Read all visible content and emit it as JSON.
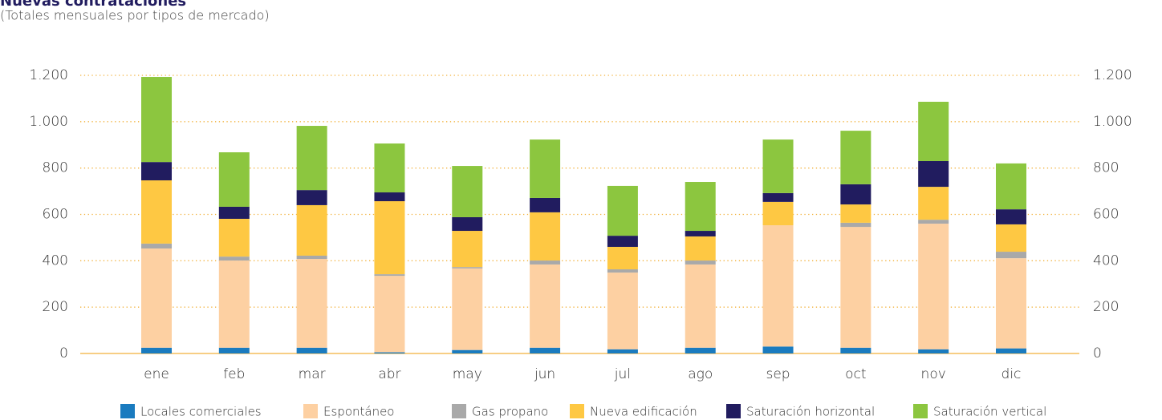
{
  "chart_data": {
    "type": "stacked_bar",
    "title": "Nuevas contrataciones",
    "subtitle": "(Totales mensuales por tipos de mercado)",
    "categories": [
      "ene",
      "feb",
      "mar",
      "abr",
      "may",
      "jun",
      "jul",
      "ago",
      "sep",
      "oct",
      "nov",
      "dic"
    ],
    "series": [
      {
        "name": "Locales comerciales",
        "color": "#1a7bbf",
        "values": [
          25,
          25,
          25,
          5,
          15,
          25,
          18,
          25,
          30,
          25,
          18,
          22
        ]
      },
      {
        "name": "Espontáneo",
        "color": "#fdd0a2",
        "values": [
          428,
          376,
          383,
          330,
          352,
          359,
          331,
          359,
          523,
          521,
          542,
          389
        ]
      },
      {
        "name": "Gas propano",
        "color": "#a9a9a9",
        "values": [
          21,
          17,
          14,
          7,
          6,
          17,
          14,
          17,
          0,
          18,
          17,
          28
        ]
      },
      {
        "name": "Nueva edificación",
        "color": "#fec843",
        "values": [
          273,
          163,
          218,
          315,
          156,
          208,
          97,
          104,
          101,
          79,
          142,
          118
        ]
      },
      {
        "name": "Saturación horizontal",
        "color": "#211c5f",
        "values": [
          79,
          52,
          65,
          38,
          59,
          62,
          48,
          24,
          38,
          87,
          111,
          65
        ]
      },
      {
        "name": "Saturación vertical",
        "color": "#8cc63f",
        "values": [
          367,
          235,
          277,
          211,
          221,
          252,
          215,
          211,
          231,
          231,
          256,
          198
        ]
      }
    ],
    "ylim": [
      0,
      1200
    ],
    "yticks": [
      0,
      200,
      400,
      600,
      800,
      {
        "value": 1000,
        "label": "1.000"
      },
      {
        "value": 1200,
        "label": "1.200"
      }
    ],
    "y2lim": [
      0,
      1200
    ],
    "y2ticks": [
      0,
      200,
      400,
      600,
      800,
      {
        "value": 1000,
        "label": "1.000"
      },
      {
        "value": 1200,
        "label": "1.200"
      }
    ],
    "grid": true,
    "legend": "bottom"
  }
}
